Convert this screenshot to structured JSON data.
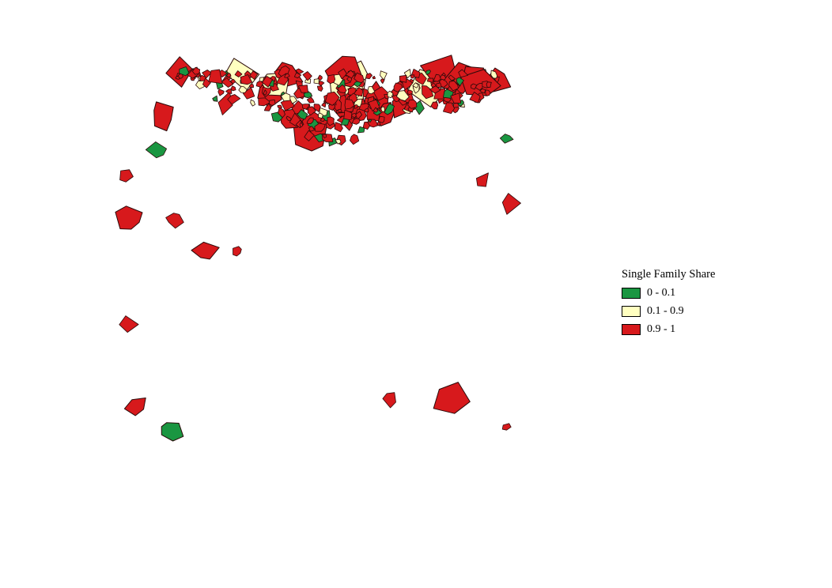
{
  "map": {
    "legend": {
      "title": "Single Family Share",
      "classes": [
        {
          "label": "0 - 0.1",
          "color": "#1a9641"
        },
        {
          "label": "0.1 - 0.9",
          "color": "#ffffc0"
        },
        {
          "label": "0.9 - 1",
          "color": "#d7191c"
        }
      ]
    },
    "outline_color": "#2b0a0a"
  }
}
